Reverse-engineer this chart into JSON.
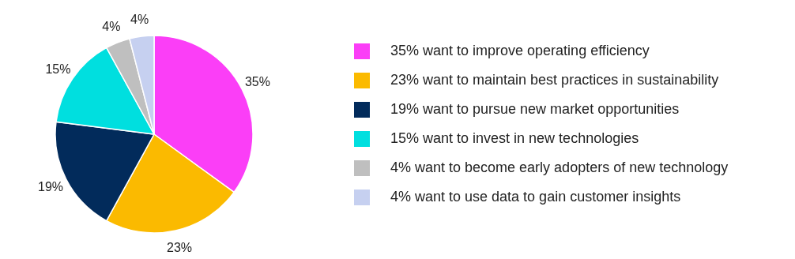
{
  "chart_data": {
    "type": "pie",
    "categories": [
      "35% want to improve operating efficiency",
      "23% want to maintain best practices in sustainability",
      "19% want to pursue new market opportunities",
      "15% want to invest in new technologies",
      "4% want to become early adopters of new technology",
      "4% want to use data to gain customer insights"
    ],
    "values": [
      35,
      23,
      19,
      15,
      4,
      4
    ],
    "colors": [
      "#fb3ef7",
      "#fbba00",
      "#022b5b",
      "#00dfdf",
      "#bfbfbf",
      "#c6d0f0"
    ],
    "value_labels": [
      "35%",
      "23%",
      "19%",
      "15%",
      "4%",
      "4%"
    ],
    "legend": "right"
  }
}
